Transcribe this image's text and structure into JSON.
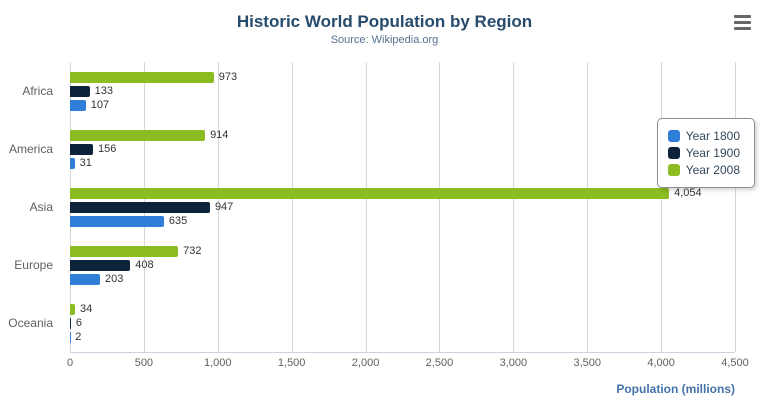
{
  "title": "Historic World Population by Region",
  "subtitle": "Source: Wikipedia.org",
  "chart_data": {
    "type": "bar",
    "orientation": "horizontal",
    "title": "Historic World Population by Region",
    "subtitle": "Source: Wikipedia.org",
    "categories": [
      "Africa",
      "America",
      "Asia",
      "Europe",
      "Oceania"
    ],
    "series": [
      {
        "name": "Year 1800",
        "color": "#2f7ed8",
        "values": [
          107,
          31,
          635,
          203,
          2
        ]
      },
      {
        "name": "Year 1900",
        "color": "#0d233a",
        "values": [
          133,
          156,
          947,
          408,
          6
        ]
      },
      {
        "name": "Year 2008",
        "color": "#8bbc21",
        "values": [
          973,
          914,
          4054,
          732,
          34
        ]
      }
    ],
    "xlabel": "Population (millions)",
    "ylabel": "",
    "xlim": [
      0,
      4500
    ],
    "xticks": [
      0,
      500,
      1000,
      1500,
      2000,
      2500,
      3000,
      3500,
      4000,
      4500
    ],
    "grid": true,
    "legend_position": "right",
    "data_labels": true
  },
  "icons": {
    "menu": "hamburger-icon"
  }
}
